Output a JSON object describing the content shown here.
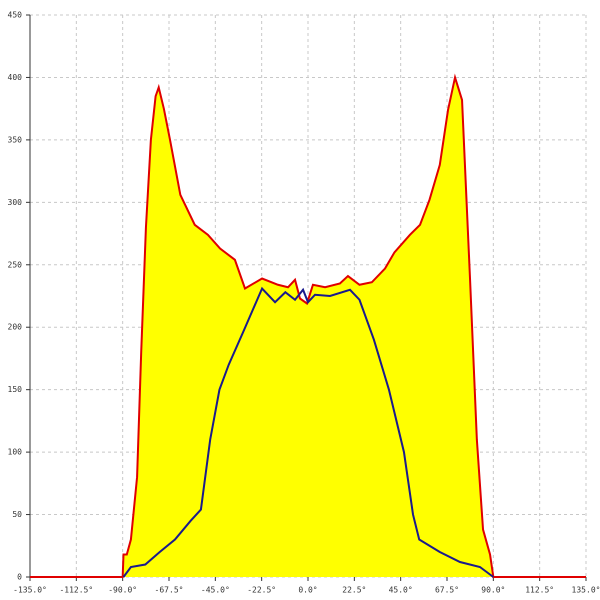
{
  "chart_data": {
    "type": "area",
    "xlim": [
      -135,
      135
    ],
    "ylim": [
      0,
      450
    ],
    "xticks": [
      {
        "value": -135,
        "label": "-135.0°"
      },
      {
        "value": -112.5,
        "label": "-112.5°"
      },
      {
        "value": -90,
        "label": "-90.0°"
      },
      {
        "value": -67.5,
        "label": "-67.5°"
      },
      {
        "value": -45,
        "label": "-45.0°"
      },
      {
        "value": -22.5,
        "label": "-22.5°"
      },
      {
        "value": 0,
        "label": "0.0°"
      },
      {
        "value": 22.5,
        "label": "22.5°"
      },
      {
        "value": 45,
        "label": "45.0°"
      },
      {
        "value": 67.5,
        "label": "67.5°"
      },
      {
        "value": 90,
        "label": "90.0°"
      },
      {
        "value": 112.5,
        "label": "112.5°"
      },
      {
        "value": 135,
        "label": "135.0°"
      }
    ],
    "yticks": [
      0,
      50,
      100,
      150,
      200,
      250,
      300,
      350,
      400,
      450
    ],
    "grid": true,
    "series": [
      {
        "type": "area",
        "color": "#e00000",
        "fill": "#ffff00",
        "x": [
          -135,
          -90,
          -89.6,
          -88,
          -86,
          -83,
          -81,
          -78.7,
          -76.3,
          -74,
          -72.5,
          -70,
          -67,
          -62,
          -55,
          -48.6,
          -42.7,
          -35.5,
          -30.6,
          -22.3,
          -14.6,
          -9.7,
          -6.3,
          -3.9,
          -0.5,
          2.4,
          8.3,
          15.5,
          19.4,
          25,
          31,
          37.4,
          42,
          49.5,
          54.4,
          59,
          64,
          68,
          71.4,
          74.8,
          78.7,
          82,
          85,
          88.4,
          90,
          135
        ],
        "values": [
          0,
          0,
          18,
          18,
          30,
          80,
          180,
          280,
          350,
          385,
          392,
          375,
          350,
          306,
          282,
          274,
          263,
          254,
          231,
          239,
          234,
          232,
          238,
          223,
          219,
          234,
          232,
          235,
          241,
          234,
          236,
          247,
          260,
          274,
          282,
          302,
          330,
          374,
          400,
          382,
          238,
          110,
          38,
          18,
          0,
          0
        ]
      },
      {
        "type": "line",
        "color": "#1a1a8c",
        "x": [
          -89.6,
          -86,
          -79,
          -72,
          -64.6,
          -57,
          -52,
          -47.5,
          -43,
          -38.5,
          -31,
          -22.3,
          -16,
          -11,
          -6.3,
          -2.4,
          0,
          3.4,
          10.7,
          20.4,
          25,
          32,
          39.3,
          46.6,
          51,
          54,
          64,
          73.8,
          83.5,
          90
        ],
        "values": [
          0,
          8,
          10,
          20,
          30,
          45,
          54,
          110,
          150,
          170,
          198,
          231,
          220,
          228,
          222,
          230,
          220,
          226,
          225,
          230,
          222,
          190,
          150,
          100,
          50,
          30,
          20,
          12,
          8,
          0
        ]
      }
    ]
  }
}
